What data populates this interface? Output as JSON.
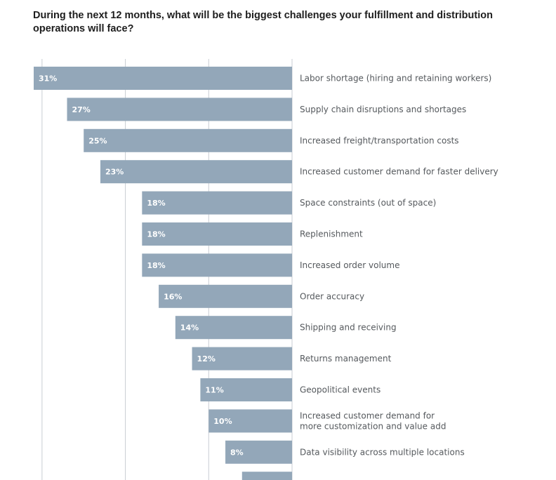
{
  "chart_data": {
    "type": "bar",
    "orientation": "horizontal",
    "title": "During the next 12 months, what will be the biggest challenges your fulfillment and distribution operations will face?",
    "value_suffix": "%",
    "xlim": [
      0,
      31
    ],
    "grid": true,
    "categories": [
      "Labor shortage (hiring and retaining workers)",
      "Supply chain disruptions and shortages",
      "Increased freight/transportation costs",
      "Increased customer demand for faster delivery",
      "Space constraints (out of space)",
      "Replenishment",
      "Increased order volume",
      "Order accuracy",
      "Shipping and receiving",
      "Returns management",
      "Geopolitical events",
      "Increased customer demand for\nmore customization and value add",
      "Data visibility across multiple locations",
      ""
    ],
    "values": [
      31,
      27,
      25,
      23,
      18,
      18,
      18,
      16,
      14,
      12,
      11,
      10,
      8,
      6
    ],
    "colors": {
      "bar": "#93a7b9",
      "bar_label": "#ffffff",
      "category_label": "#55595d",
      "grid": "#c9ced3"
    }
  }
}
